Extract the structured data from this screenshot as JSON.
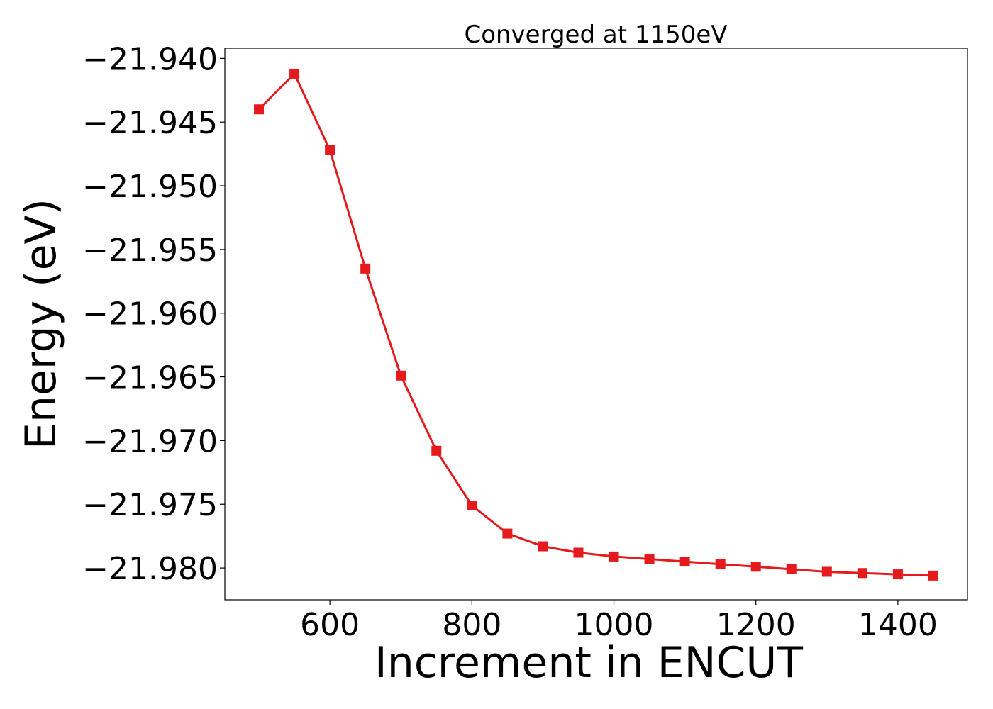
{
  "chart_data": {
    "type": "line",
    "title": "Converged at 1150eV",
    "xlabel": "Increment in ENCUT",
    "ylabel": "Energy (eV)",
    "xlim": [
      452,
      1498
    ],
    "ylim": [
      -21.9825,
      -21.9392
    ],
    "xticks": [
      600,
      800,
      1000,
      1200,
      1400
    ],
    "xtick_labels": [
      "600",
      "800",
      "1000",
      "1200",
      "1400"
    ],
    "yticks": [
      -21.94,
      -21.945,
      -21.95,
      -21.955,
      -21.96,
      -21.965,
      -21.97,
      -21.975,
      -21.98
    ],
    "ytick_labels": [
      "−21.940",
      "−21.945",
      "−21.950",
      "−21.955",
      "−21.960",
      "−21.965",
      "−21.970",
      "−21.975",
      "−21.980"
    ],
    "grid": false,
    "series": [
      {
        "color": "#e41a1c",
        "marker": "square",
        "x": [
          500,
          550,
          600,
          650,
          700,
          750,
          800,
          850,
          900,
          950,
          1000,
          1050,
          1100,
          1150,
          1200,
          1250,
          1300,
          1350,
          1400,
          1450
        ],
        "y": [
          -21.944,
          -21.9412,
          -21.9472,
          -21.9565,
          -21.9649,
          -21.9708,
          -21.9751,
          -21.9773,
          -21.9783,
          -21.9788,
          -21.9791,
          -21.9793,
          -21.9795,
          -21.9797,
          -21.9799,
          -21.9801,
          -21.9803,
          -21.9804,
          -21.9805,
          -21.9806
        ]
      }
    ]
  }
}
